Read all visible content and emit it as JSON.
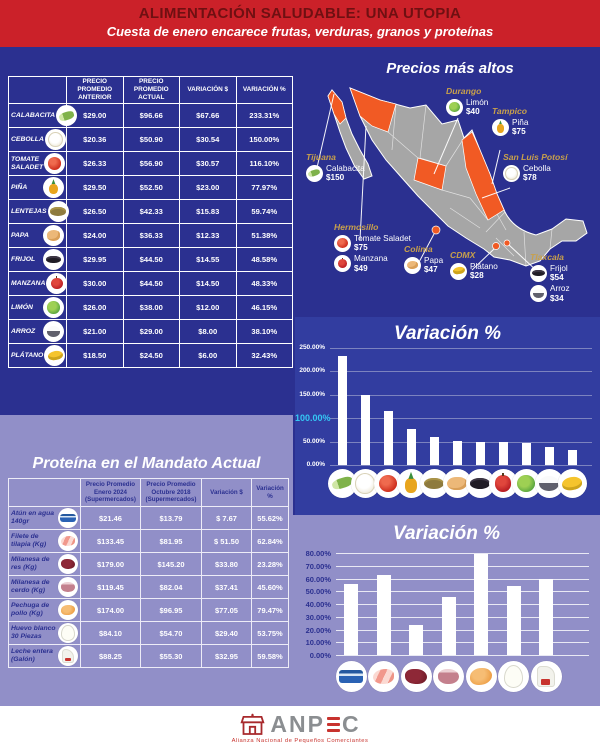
{
  "header": {
    "title": "ALIMENTACIÓN SALUDABLE: UNA UTOPIA",
    "subtitle": "Cuesta de enero encarece frutas, verduras, granos y proteínas"
  },
  "produce_table": {
    "headers": [
      "PRECIO PROMEDIO ANTERIOR",
      "PRECIO PROMEDIO ACTUAL",
      "VARIACIÓN $",
      "VARIACIÓN %"
    ],
    "rows": [
      {
        "name": "CALABACITA",
        "icon": "calabacita",
        "anterior": "$29.00",
        "actual": "$96.66",
        "var_pesos": "$67.66",
        "var_pct": "233.31%"
      },
      {
        "name": "CEBOLLA",
        "icon": "cebolla",
        "anterior": "$20.36",
        "actual": "$50.90",
        "var_pesos": "$30.54",
        "var_pct": "150.00%"
      },
      {
        "name": "TOMATE SALADET",
        "icon": "tomate",
        "anterior": "$26.33",
        "actual": "$56.90",
        "var_pesos": "$30.57",
        "var_pct": "116.10%"
      },
      {
        "name": "PIÑA",
        "icon": "pina",
        "anterior": "$29.50",
        "actual": "$52.50",
        "var_pesos": "$23.00",
        "var_pct": "77.97%"
      },
      {
        "name": "LENTEJAS",
        "icon": "lentejas",
        "anterior": "$26.50",
        "actual": "$42.33",
        "var_pesos": "$15.83",
        "var_pct": "59.74%"
      },
      {
        "name": "PAPA",
        "icon": "papa",
        "anterior": "$24.00",
        "actual": "$36.33",
        "var_pesos": "$12.33",
        "var_pct": "51.38%"
      },
      {
        "name": "FRIJOL",
        "icon": "frijol",
        "anterior": "$29.95",
        "actual": "$44.50",
        "var_pesos": "$14.55",
        "var_pct": "48.58%"
      },
      {
        "name": "MANZANA",
        "icon": "manzana",
        "anterior": "$30.00",
        "actual": "$44.50",
        "var_pesos": "$14.50",
        "var_pct": "48.33%"
      },
      {
        "name": "LIMÓN",
        "icon": "limon",
        "anterior": "$26.00",
        "actual": "$38.00",
        "var_pesos": "$12.00",
        "var_pct": "46.15%"
      },
      {
        "name": "ARROZ",
        "icon": "arroz",
        "anterior": "$21.00",
        "actual": "$29.00",
        "var_pesos": "$8.00",
        "var_pct": "38.10%"
      },
      {
        "name": "PLÁTANO",
        "icon": "platano",
        "anterior": "$18.50",
        "actual": "$24.50",
        "var_pesos": "$6.00",
        "var_pct": "32.43%"
      }
    ]
  },
  "map": {
    "title": "Precios más altos",
    "callouts": [
      {
        "city": "Durango",
        "items": [
          {
            "icon": "limon",
            "name": "Limón",
            "price": "$40"
          }
        ]
      },
      {
        "city": "Tampico",
        "items": [
          {
            "icon": "pina",
            "name": "Piña",
            "price": "$75"
          }
        ]
      },
      {
        "city": "San Luis Potosí",
        "items": [
          {
            "icon": "cebolla",
            "name": "Cebolla",
            "price": "$78"
          }
        ]
      },
      {
        "city": "Tijuana",
        "items": [
          {
            "icon": "calabacita",
            "name": "Calabacita",
            "price": "$150"
          }
        ]
      },
      {
        "city": "Hermosillo",
        "items": [
          {
            "icon": "tomate",
            "name": "Tomate Saladet",
            "price": "$75"
          },
          {
            "icon": "manzana",
            "name": "Manzana",
            "price": "$49"
          }
        ]
      },
      {
        "city": "Colima",
        "items": [
          {
            "icon": "papa",
            "name": "Papa",
            "price": "$47"
          }
        ]
      },
      {
        "city": "CDMX",
        "items": [
          {
            "icon": "platano",
            "name": "Plátano",
            "price": "$28"
          }
        ]
      },
      {
        "city": "Tlaxcala",
        "items": [
          {
            "icon": "frijol",
            "name": "Frijol",
            "price": "$54"
          },
          {
            "icon": "arroz",
            "name": "Arroz",
            "price": "$34"
          }
        ]
      }
    ]
  },
  "protein_section": {
    "title": "Proteína en el Mandato Actual",
    "headers": [
      "Precio Promedio Enero 2024 (Supermercados)",
      "Precio Promedio Octubre 2018 (Supermercados)",
      "Variación $",
      "Variación %"
    ],
    "rows": [
      {
        "name": "Atún en agua 140gr",
        "icon": "atun",
        "enero_2024": "$21.46",
        "octubre_2018": "$13.79",
        "var_pesos": "$ 7.67",
        "var_pct": "55.62%"
      },
      {
        "name": "Filete de tilapia (Kg)",
        "icon": "tilapia",
        "enero_2024": "$133.45",
        "octubre_2018": "$81.95",
        "var_pesos": "$ 51.50",
        "var_pct": "62.84%"
      },
      {
        "name": "Milanesa de res (Kg)",
        "icon": "res",
        "enero_2024": "$179.00",
        "octubre_2018": "$145.20",
        "var_pesos": "$33.80",
        "var_pct": "23.28%"
      },
      {
        "name": "Milanesa de cerdo (Kg)",
        "icon": "cerdo",
        "enero_2024": "$119.45",
        "octubre_2018": "$82.04",
        "var_pesos": "$37.41",
        "var_pct": "45.60%"
      },
      {
        "name": "Pechuga de pollo (Kg)",
        "icon": "pollo",
        "enero_2024": "$174.00",
        "octubre_2018": "$96.95",
        "var_pesos": "$77.05",
        "var_pct": "79.47%"
      },
      {
        "name": "Huevo blanco 30 Piezas",
        "icon": "huevo",
        "enero_2024": "$84.10",
        "octubre_2018": "$54.70",
        "var_pesos": "$29.40",
        "var_pct": "53.75%"
      },
      {
        "name": "Leche entera (Galón)",
        "icon": "leche",
        "enero_2024": "$88.25",
        "octubre_2018": "$55.30",
        "var_pesos": "$32.95",
        "var_pct": "59.58%"
      }
    ]
  },
  "chart_data": [
    {
      "type": "bar",
      "title": "Variación %",
      "categories": [
        "Calabacita",
        "Cebolla",
        "Tomate Saladet",
        "Piña",
        "Lentejas",
        "Papa",
        "Frijol",
        "Manzana",
        "Limón",
        "Arroz",
        "Plátano"
      ],
      "values": [
        233.31,
        150.0,
        116.1,
        77.97,
        59.74,
        51.38,
        48.58,
        48.33,
        46.15,
        38.1,
        32.43
      ],
      "icons": [
        "calabacita",
        "cebolla",
        "tomate",
        "pina",
        "lentejas",
        "papa",
        "frijol",
        "manzana",
        "limon",
        "arroz",
        "platano"
      ],
      "xlabel": "",
      "ylabel": "",
      "ylim": [
        0,
        250
      ],
      "yticks": [
        "0.00%",
        "50.00%",
        "100.00%",
        "150.00%",
        "200.00%",
        "250.00%"
      ],
      "highlighted_tick": "100.00%",
      "bar_color": "#ffffff",
      "grid": true,
      "legend": "none"
    },
    {
      "type": "bar",
      "title": "Variación %",
      "categories": [
        "Atún en agua 140gr",
        "Filete de tilapia (Kg)",
        "Milanesa de res (Kg)",
        "Milanesa de cerdo (Kg)",
        "Pechuga de pollo (Kg)",
        "Huevo blanco 30 Piezas",
        "Leche entera (Galón)"
      ],
      "values": [
        55.62,
        62.84,
        23.28,
        45.6,
        79.47,
        53.75,
        59.58
      ],
      "icons": [
        "atun",
        "tilapia",
        "res",
        "cerdo",
        "pollo",
        "huevo",
        "leche"
      ],
      "xlabel": "",
      "ylabel": "",
      "ylim": [
        0,
        80
      ],
      "yticks": [
        "0.00%",
        "10.00%",
        "20.00%",
        "30.00%",
        "40.00%",
        "50.00%",
        "60.00%",
        "70.00%",
        "80.00%"
      ],
      "bar_color": "#ffffff",
      "grid": true,
      "legend": "none"
    }
  ],
  "colors": {
    "background_navy": "#2b3090",
    "panel_lavender": "#918fc8",
    "header_red": "#cb2129",
    "header_title_maroon": "#6f1012",
    "map_state_orange": "#f15a24",
    "map_gray": "#a6a6a6",
    "city_gold": "#c8a04b",
    "tick_highlight_cyan": "#35c8f5"
  },
  "footer": {
    "brand": "ANPEC",
    "brand_prefix": "ANP",
    "brand_suffix": "C",
    "tagline": "Alianza Nacional de Pequeños Comerciantes"
  }
}
